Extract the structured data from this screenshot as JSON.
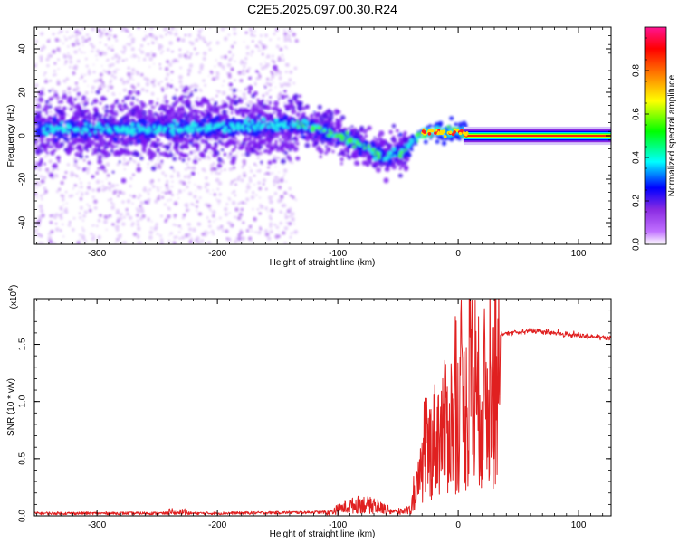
{
  "title": "C2E5.2025.097.00.30.R24",
  "chart_data": [
    {
      "type": "heatmap",
      "xlabel": "Height of straight line (km)",
      "ylabel": "Frequency (Hz)",
      "xlim": [
        -352,
        127
      ],
      "ylim": [
        -50,
        50
      ],
      "xticks": [
        -300,
        -200,
        -100,
        0,
        100
      ],
      "yticks": [
        -40,
        -20,
        0,
        20,
        40
      ],
      "colorbar": {
        "label": "Normalized spectral amplitude",
        "range": [
          0,
          1
        ],
        "ticks": [
          0.0,
          0.2,
          0.4,
          0.6,
          0.8
        ],
        "colormap": [
          "#ffffff",
          "#8a2be2",
          "#0000ff",
          "#00ffff",
          "#00ff00",
          "#ffff00",
          "#ff8000",
          "#ff0000",
          "#ff1493"
        ]
      },
      "ridge": {
        "x": [
          -350,
          -300,
          -250,
          -200,
          -150,
          -130,
          -110,
          -90,
          -75,
          -60,
          -50,
          -40,
          -30,
          -20,
          -10,
          0,
          10,
          50,
          127
        ],
        "y": [
          3,
          3,
          3,
          4,
          5,
          5,
          2,
          -2,
          -6,
          -10,
          -8,
          -4,
          1,
          2,
          1,
          2,
          0,
          0,
          0
        ]
      }
    },
    {
      "type": "line",
      "xlabel": "Height of straight line (km)",
      "ylabel": "SNR (10 * v/v)",
      "yscale_label": "(x10",
      "yscale_exp": "4",
      "xlim": [
        -352,
        127
      ],
      "ylim": [
        0,
        1.9
      ],
      "xticks": [
        -300,
        -200,
        -100,
        0,
        100
      ],
      "yticks": [
        0.0,
        0.5,
        1.0,
        1.5
      ],
      "color": "#e02020",
      "envelope": {
        "x": [
          -352,
          -200,
          -110,
          -100,
          -90,
          -80,
          -70,
          -60,
          -50,
          -40,
          -35,
          -30,
          -25,
          -20,
          -15,
          -10,
          -5,
          0,
          5,
          10,
          20,
          30,
          40,
          60,
          80,
          100,
          127
        ],
        "y": [
          0.01,
          0.01,
          0.02,
          0.06,
          0.09,
          0.11,
          0.09,
          0.06,
          0.03,
          0.06,
          0.3,
          0.55,
          0.8,
          0.95,
          1.05,
          1.1,
          1.2,
          1.25,
          1.3,
          1.35,
          1.45,
          1.55,
          1.6,
          1.62,
          1.6,
          1.58,
          1.55
        ]
      }
    }
  ]
}
